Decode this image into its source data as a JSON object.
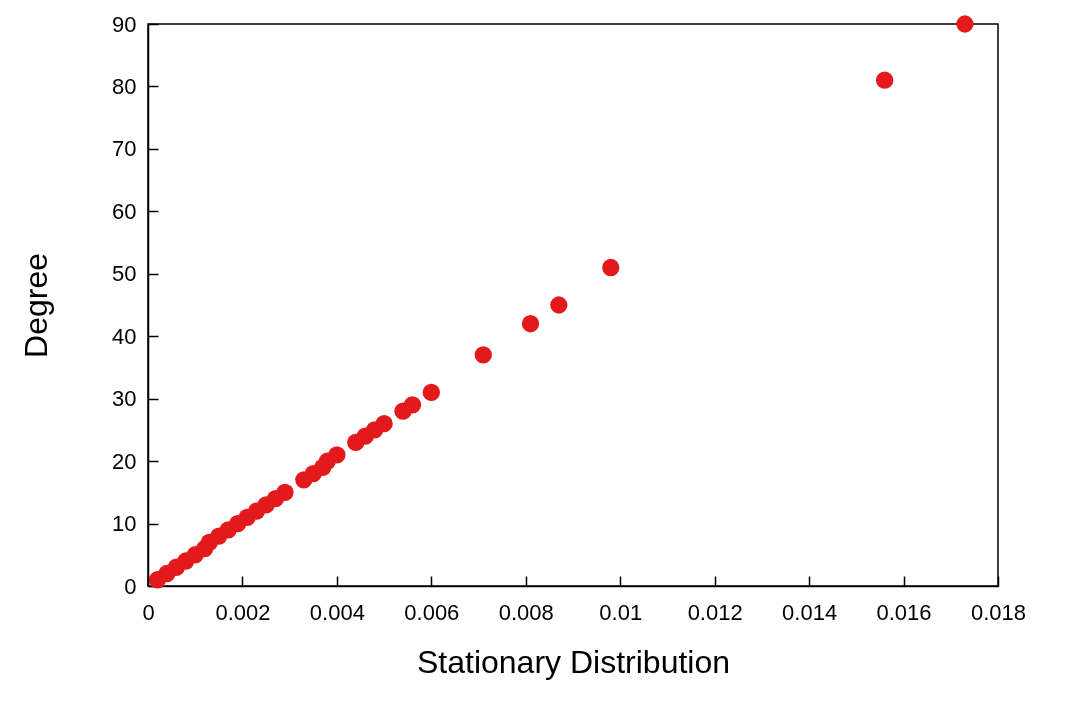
{
  "chart_data": {
    "type": "scatter",
    "xlabel": "Stationary Distribution",
    "ylabel": "Degree",
    "x": [
      0.0002,
      0.0004,
      0.0006,
      0.0008,
      0.001,
      0.0012,
      0.0013,
      0.0015,
      0.0017,
      0.0019,
      0.0021,
      0.0023,
      0.0025,
      0.0027,
      0.0029,
      0.0033,
      0.0035,
      0.0037,
      0.0038,
      0.004,
      0.0044,
      0.0046,
      0.0048,
      0.005,
      0.0054,
      0.0056,
      0.006,
      0.0071,
      0.0081,
      0.0087,
      0.0098,
      0.0156,
      0.0173
    ],
    "series": [
      {
        "color": "#e31a1c",
        "values": [
          1,
          2,
          3,
          4,
          5,
          6,
          7,
          8,
          9,
          10,
          11,
          12,
          13,
          14,
          15,
          17,
          18,
          19,
          20,
          21,
          23,
          24,
          25,
          26,
          28,
          29,
          31,
          37,
          42,
          45,
          51,
          81,
          90
        ]
      }
    ],
    "xlim": [
      0,
      0.018
    ],
    "xticks": [
      0,
      0.002,
      0.004,
      0.006,
      0.008,
      0.01,
      0.012,
      0.014,
      0.016,
      0.018
    ],
    "ylim": [
      0,
      90
    ],
    "yticks": [
      0,
      10,
      20,
      30,
      40,
      50,
      60,
      70,
      80,
      90
    ],
    "grid": false,
    "marker": "circle"
  }
}
